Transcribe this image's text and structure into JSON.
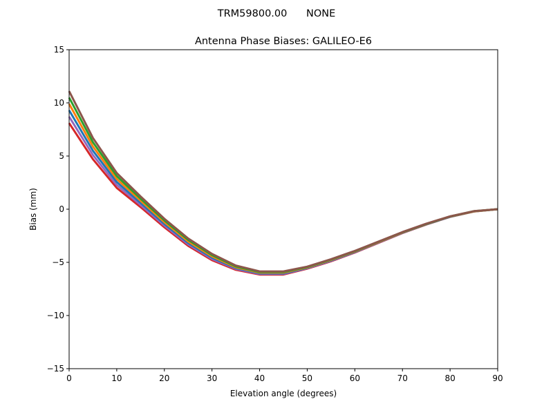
{
  "suptitle": "TRM59800.00      NONE",
  "chart_data": {
    "type": "line",
    "title": "Antenna Phase Biases: GALILEO-E6",
    "xlabel": "Elevation angle (degrees)",
    "ylabel": "Bias (mm)",
    "xlim": [
      0,
      90
    ],
    "ylim": [
      -15,
      15
    ],
    "xticks": [
      "0",
      "10",
      "20",
      "30",
      "40",
      "50",
      "60",
      "70",
      "80",
      "90"
    ],
    "yticks": [
      "15",
      "10",
      "5",
      "0",
      "−5",
      "−10",
      "−15"
    ],
    "grid": false,
    "x": [
      0,
      5,
      10,
      15,
      20,
      25,
      30,
      35,
      40,
      45,
      50,
      55,
      60,
      65,
      70,
      75,
      80,
      85,
      90
    ],
    "colors": [
      "#d62728",
      "#9467bd",
      "#1f77b4",
      "#ff7f0e",
      "#2ca02c",
      "#8c564b",
      "#17becf",
      "#bcbd22",
      "#e377c2"
    ],
    "series": [
      {
        "values": [
          8.1,
          4.7,
          2.0,
          0.2,
          -1.7,
          -3.45,
          -4.8,
          -5.7,
          -6.15,
          -6.15,
          -5.6,
          -4.9,
          -4.08,
          -3.16,
          -2.25,
          -1.44,
          -0.73,
          -0.22,
          0
        ]
      },
      {
        "values": [
          8.7,
          5.1,
          2.28,
          0.4,
          -1.54,
          -3.31,
          -4.68,
          -5.62,
          -6.09,
          -6.09,
          -5.56,
          -4.86,
          -4.05,
          -3.14,
          -2.23,
          -1.42,
          -0.72,
          -0.21,
          0
        ]
      },
      {
        "values": [
          9.3,
          5.5,
          2.56,
          0.6,
          -1.38,
          -3.17,
          -4.56,
          -5.54,
          -6.03,
          -6.03,
          -5.52,
          -4.82,
          -4.02,
          -3.11,
          -2.21,
          -1.41,
          -0.71,
          -0.2,
          0
        ]
      },
      {
        "values": [
          9.9,
          5.9,
          2.84,
          0.8,
          -1.22,
          -3.03,
          -4.44,
          -5.46,
          -5.97,
          -5.97,
          -5.48,
          -4.78,
          -3.98,
          -3.09,
          -2.19,
          -1.39,
          -0.69,
          -0.2,
          0
        ]
      },
      {
        "values": [
          10.5,
          6.3,
          3.12,
          1.0,
          -1.06,
          -2.89,
          -4.32,
          -5.38,
          -5.91,
          -5.91,
          -5.44,
          -4.74,
          -3.95,
          -3.06,
          -2.17,
          -1.38,
          -0.68,
          -0.19,
          0
        ]
      },
      {
        "values": [
          11.1,
          6.7,
          3.4,
          1.2,
          -0.9,
          -2.75,
          -4.2,
          -5.3,
          -5.85,
          -5.85,
          -5.4,
          -4.7,
          -3.92,
          -3.04,
          -2.15,
          -1.36,
          -0.67,
          -0.18,
          0
        ]
      }
    ]
  }
}
